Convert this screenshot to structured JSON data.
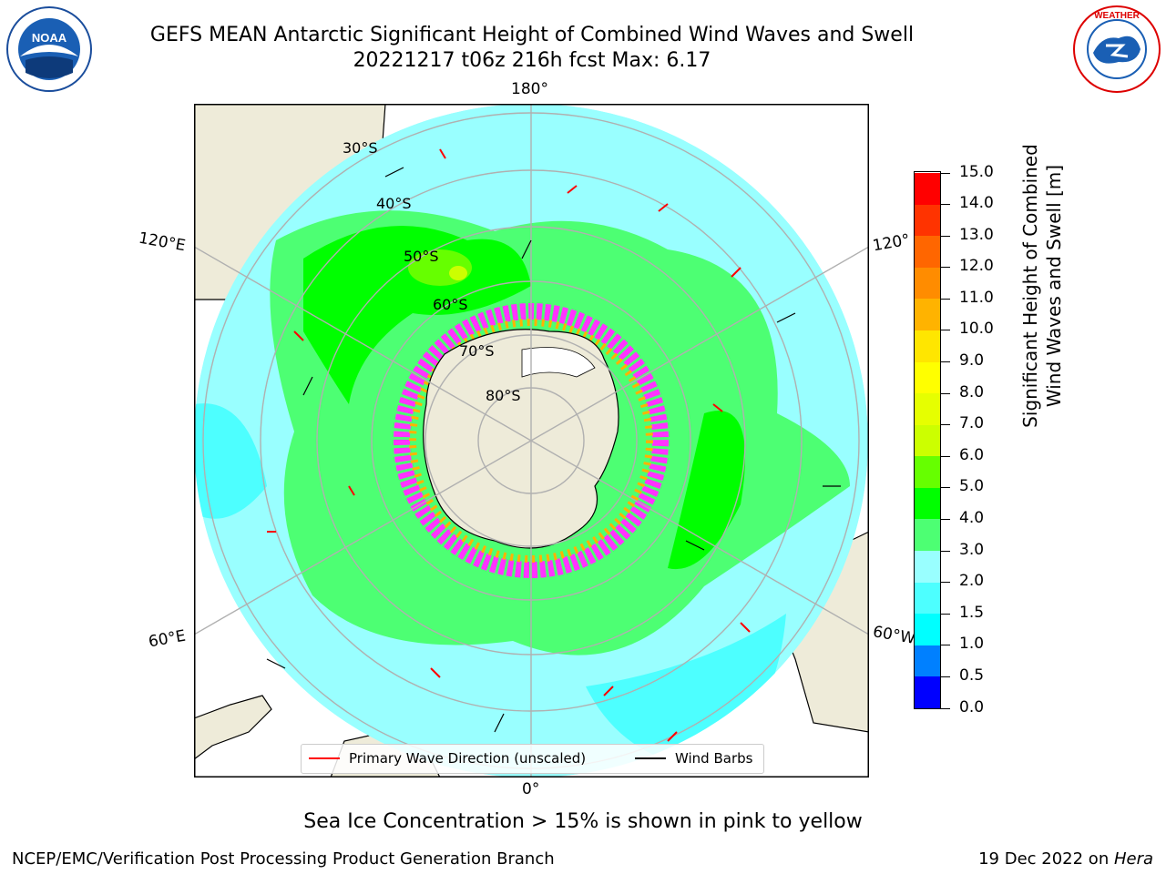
{
  "title_line1": "GEFS MEAN Antarctic Significant Height of Combined Wind Waves and Swell",
  "title_line2": "20221217 t06z 216h fcst   Max: 6.17",
  "caption": "Sea Ice Concentration > 15% is shown in pink to yellow",
  "footer_left": "NCEP/EMC/Verification Post Processing Product Generation Branch",
  "footer_right_text": "19 Dec 2022 on ",
  "footer_right_host": "Hera",
  "logos": {
    "left": "NOAA",
    "right": "NATIONAL WEATHER SERVICE"
  },
  "map": {
    "lon_labels": {
      "top": "180°",
      "bottom": "0°",
      "upper_left": "120°E",
      "lower_left": "60°E",
      "upper_right": "120°",
      "lower_right": "60°W"
    },
    "lat_labels": [
      "30°S",
      "40°S",
      "50°S",
      "60°S",
      "70°S",
      "80°S"
    ],
    "colors": {
      "land": "#eeebd9",
      "ocean_low": "#99ffff",
      "ocean_mid": "#4dff73",
      "ocean_high": "#00ff00",
      "ice": "#ff33ff",
      "barb": "#000000",
      "arrow": "#ff0000"
    }
  },
  "legend": {
    "wave_dir": "Primary Wave Direction (unscaled)",
    "wind_barbs": "Wind Barbs",
    "wave_color": "#ff0000",
    "barb_color": "#000000"
  },
  "colorbar": {
    "label_line1": "Significant Height of Combined",
    "label_line2": "Wind Waves and Swell [m]",
    "ticks": [
      "0.0",
      "0.5",
      "1.0",
      "1.5",
      "2.0",
      "3.0",
      "4.0",
      "5.0",
      "6.0",
      "7.0",
      "8.0",
      "9.0",
      "10.0",
      "11.0",
      "12.0",
      "13.0",
      "14.0",
      "15.0"
    ],
    "colors": [
      "#0000ff",
      "#0080ff",
      "#00ffff",
      "#4dffff",
      "#99ffff",
      "#4dff73",
      "#00ff00",
      "#66ff00",
      "#ccff00",
      "#e6ff00",
      "#ffff00",
      "#ffe600",
      "#ffb300",
      "#ff8c00",
      "#ff6600",
      "#ff3300",
      "#ff0000"
    ]
  }
}
